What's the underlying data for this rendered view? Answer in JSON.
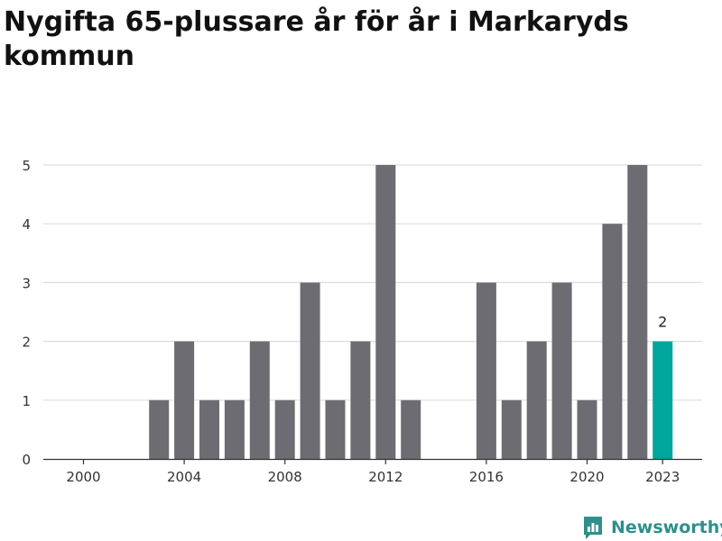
{
  "title": "Nygifta 65-plussare år för år i Markaryds kommun",
  "brand": "Newsworthy",
  "colors": {
    "bar": "#6d6c72",
    "highlight": "#00a69c",
    "grid": "#dddddd",
    "brand": "#2f8f8a"
  },
  "chart_data": {
    "type": "bar",
    "title": "Nygifta 65-plussare år för år i Markaryds kommun",
    "xlabel": "",
    "ylabel": "",
    "categories": [
      2000,
      2001,
      2002,
      2003,
      2004,
      2005,
      2006,
      2007,
      2008,
      2009,
      2010,
      2011,
      2012,
      2013,
      2014,
      2015,
      2016,
      2017,
      2018,
      2019,
      2020,
      2021,
      2022,
      2023
    ],
    "values": [
      0,
      0,
      0,
      1,
      2,
      1,
      1,
      2,
      1,
      3,
      1,
      2,
      5,
      1,
      0,
      0,
      3,
      1,
      2,
      3,
      1,
      4,
      5,
      2
    ],
    "highlight": {
      "x": 2023,
      "value": 2,
      "label": "2"
    },
    "x_ticks": [
      "2000",
      "2004",
      "2008",
      "2012",
      "2016",
      "2020",
      "2023"
    ],
    "y_ticks": [
      "0",
      "1",
      "2",
      "3",
      "4",
      "5"
    ],
    "ylim": [
      0,
      5
    ],
    "grid": true,
    "legend": "none"
  }
}
